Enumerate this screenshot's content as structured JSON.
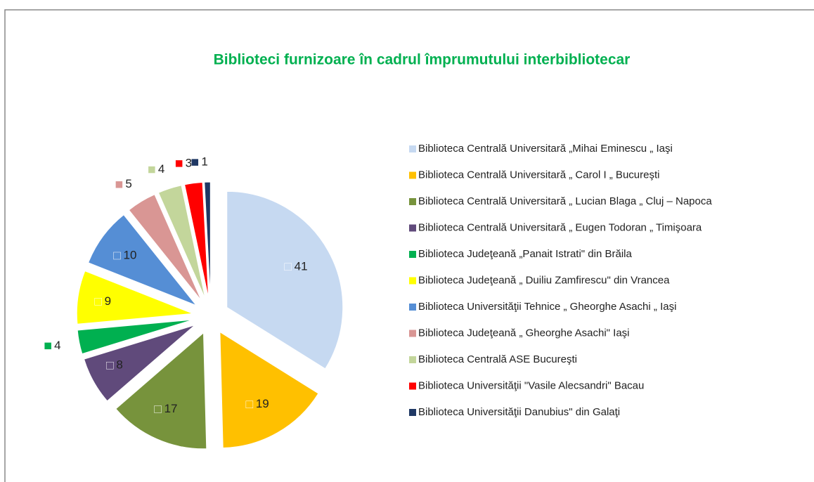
{
  "chart_data": {
    "type": "pie",
    "title": "Biblioteci furnizoare în cadrul împrumutului interbibliotecar",
    "categories": [
      "Biblioteca Centrală Universitară „Mihai Eminescu „ Iaşi",
      "Biblioteca Centrală Universitară „ Carol I „ Bucureşti",
      "Biblioteca Centrală Universitară „ Lucian Blaga „ Cluj – Napoca",
      "Biblioteca Centrală Universitară „ Eugen Todoran „ Timişoara",
      "Biblioteca Judeţeană  „Panait Istrati\" din Brăila",
      "Biblioteca Judeţeană „ Duiliu Zamfirescu\" din Vrancea",
      "Biblioteca Universităţii Tehnice „ Gheorghe Asachi „ Iaşi",
      "Biblioteca Judeţeană „ Gheorghe Asachi\" Iaşi",
      "Biblioteca Centrală ASE Bucureşti",
      "Biblioteca Universităţii \"Vasile Alecsandri\" Bacau",
      "Biblioteca Universităţii Danubius\" din Galaţi"
    ],
    "values": [
      41,
      19,
      17,
      8,
      4,
      9,
      10,
      5,
      4,
      3,
      1
    ],
    "colors": [
      "#c6d9f1",
      "#ffc000",
      "#77933c",
      "#604a7b",
      "#00b050",
      "#ffff00",
      "#558ed5",
      "#d99694",
      "#c3d69b",
      "#ff0000",
      "#1f3864"
    ]
  }
}
